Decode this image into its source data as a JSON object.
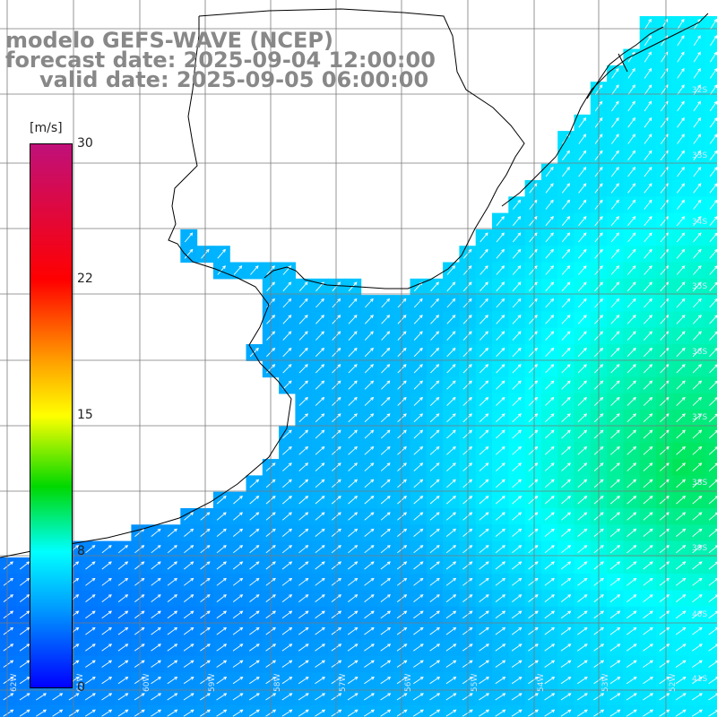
{
  "title": {
    "line1": "modelo GEFS-WAVE (NCEP)",
    "line2": "forecast date: 2025-09-04 12:00:00",
    "line3": "valid date: 2025-09-05 06:00:00"
  },
  "colorbar": {
    "units": "[m/s]",
    "ticks": [
      "30",
      "22",
      "15",
      "8",
      "0"
    ],
    "tick_values": [
      30,
      22,
      15,
      8,
      0
    ],
    "range": [
      0,
      30
    ],
    "colors": [
      "#0000ff",
      "#00a0ff",
      "#00ffff",
      "#00d800",
      "#ffff00",
      "#ffa000",
      "#ff0000",
      "#c0107a"
    ]
  },
  "grid": {
    "lat_labels": [
      "32S",
      "33S",
      "34S",
      "35S",
      "36S",
      "37S",
      "38S",
      "39S",
      "40S",
      "41S"
    ],
    "lon_labels": [
      "62W",
      "61W",
      "60W",
      "59W",
      "58W",
      "57W",
      "56W",
      "55W",
      "54W",
      "53W",
      "52W"
    ]
  },
  "colors": {
    "title": "#888888",
    "land": "#ffffff",
    "coastline": "#000000",
    "gridline": "#7a7a7a",
    "arrow": "#ffffff"
  }
}
